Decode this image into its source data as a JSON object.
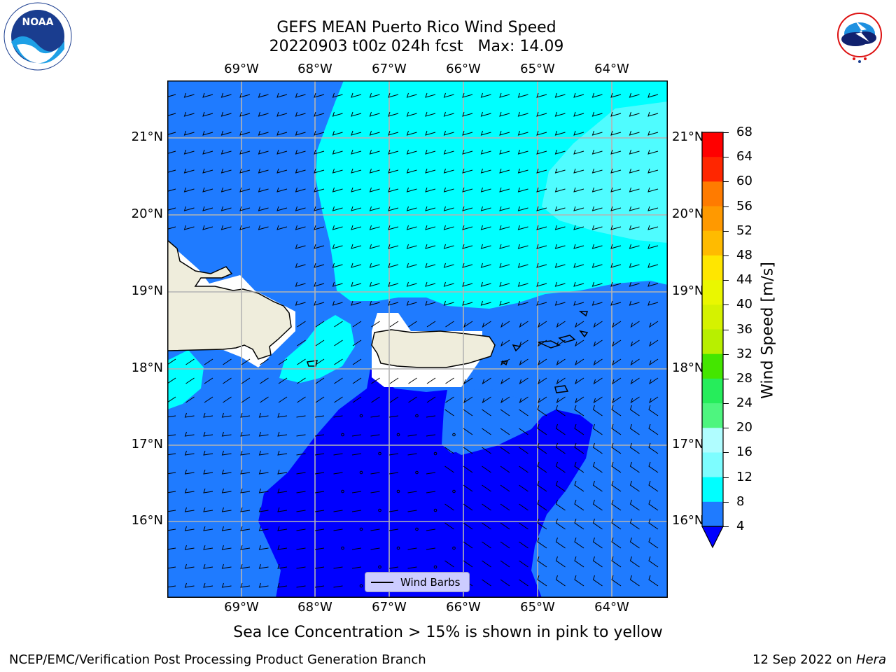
{
  "title": {
    "line1": "GEFS MEAN Puerto Rico Wind Speed",
    "line2": "20220903 t00z 024h fcst   Max: 14.09"
  },
  "logos": {
    "left": "noaa-logo",
    "right": "national-weather-service-logo",
    "left_text": "NOAA",
    "left_ring": "NATIONAL OCEANIC AND ATMOSPHERIC ADMINISTRATION · U.S. DEPARTMENT OF COMMERCE",
    "right_ring": "NATIONAL WEATHER SERVICE"
  },
  "map": {
    "lon_labels": [
      "69°W",
      "68°W",
      "67°W",
      "66°W",
      "65°W",
      "64°W"
    ],
    "lat_labels": [
      "21°N",
      "20°N",
      "19°N",
      "18°N",
      "17°N",
      "16°N"
    ],
    "legend_label": "Wind Barbs",
    "colors": {
      "band_4_8": "#1f7bff",
      "band_8_12": "#00ffff",
      "band_12_16": "#4ffcff",
      "below_4": "#0000ff",
      "land": "#efeddc",
      "missing": "#ffffff"
    }
  },
  "colorbar": {
    "label": "Wind Speed [m/s]",
    "ticks": [
      "68",
      "64",
      "60",
      "56",
      "52",
      "48",
      "44",
      "40",
      "36",
      "32",
      "28",
      "24",
      "20",
      "16",
      "12",
      "8",
      "4"
    ],
    "colors": [
      "#ff0000",
      "#ff2600",
      "#ff5000",
      "#ff7b00",
      "#ff9900",
      "#ffbb00",
      "#ffe600",
      "#fffb00",
      "#eaf700",
      "#d5f200",
      "#b8ef00",
      "#44e600",
      "#00e600",
      "#26ed5b",
      "#4ef57f",
      "#b0fdff",
      "#7dfdff",
      "#4ffcff",
      "#00ffff",
      "#1f7bff"
    ],
    "under_color": "#0000ff"
  },
  "note": "Sea Ice Concentration > 15% is shown in pink to yellow",
  "footer": {
    "left": "NCEP/EMC/Verification Post Processing Product Generation Branch",
    "right_prefix": "12 Sep 2022 on ",
    "right_host": "Hera"
  }
}
